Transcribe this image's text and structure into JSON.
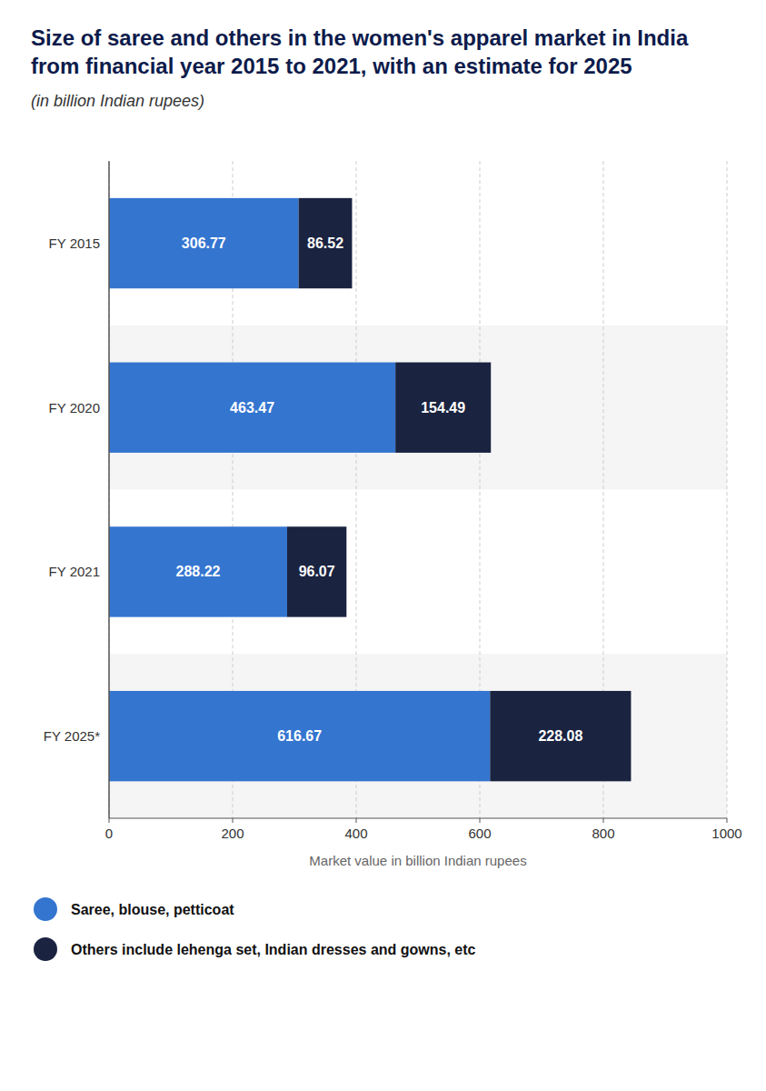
{
  "chart_data": {
    "type": "bar",
    "orientation": "horizontal",
    "stacked": true,
    "title": "Size of saree and others in the women's apparel market in India from financial year 2015 to 2021, with an estimate for 2025",
    "subtitle": "(in billion Indian rupees)",
    "categories": [
      "FY 2015",
      "FY 2020",
      "FY 2021",
      "FY 2025*"
    ],
    "series": [
      {
        "name": "Saree, blouse, petticoat",
        "color": "#3475D0",
        "values": [
          306.77,
          463.47,
          288.22,
          616.67
        ]
      },
      {
        "name": "Others include lehenga set, Indian dresses and gowns, etc",
        "color": "#1a2340",
        "values": [
          86.52,
          154.49,
          96.07,
          228.08
        ]
      }
    ],
    "xlabel": "Market value in billion Indian rupees",
    "xlim": [
      0,
      1000
    ],
    "xticks": [
      0,
      200,
      400,
      600,
      800,
      1000
    ],
    "grid": true,
    "data_labels": true,
    "legend": "bottom"
  }
}
